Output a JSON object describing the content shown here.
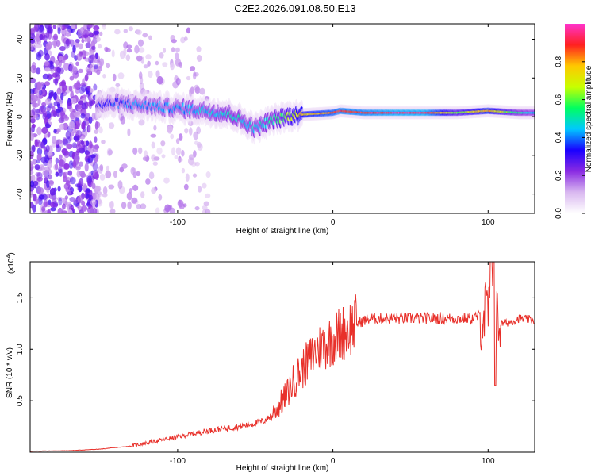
{
  "title": "C2E2.2026.091.08.50.E13",
  "chart_data": [
    {
      "type": "heatmap",
      "xlabel": "Height of straight line (km)",
      "ylabel": "Frequency (Hz)",
      "xlim": [
        -195,
        130
      ],
      "ylim": [
        -50,
        48
      ],
      "xticks": [
        -100,
        0,
        100
      ],
      "xtick_labels": [
        "-100",
        "0",
        "100"
      ],
      "yticks": [
        -40,
        -20,
        0,
        20,
        40
      ],
      "ytick_labels": [
        "-40",
        "-20",
        "0",
        "20",
        "40"
      ],
      "colorbar": {
        "label": "Normalized spectral amplitude",
        "range": [
          0,
          1
        ],
        "ticks": [
          0.0,
          0.2,
          0.4,
          0.6,
          0.8
        ],
        "tick_labels": [
          "0.0",
          "0.2",
          "0.4",
          "0.6",
          "0.8"
        ],
        "colors": [
          "#ffffff",
          "#d9b8f0",
          "#8a2be2",
          "#1a00ff",
          "#00c8ff",
          "#00ff60",
          "#c8ff00",
          "#ffc800",
          "#ff2020",
          "#ff33cc"
        ]
      },
      "ridge": [
        {
          "x": -152,
          "freq": 6,
          "amp": 0.3
        },
        {
          "x": -140,
          "freq": 7,
          "amp": 0.35
        },
        {
          "x": -125,
          "freq": 6,
          "amp": 0.4
        },
        {
          "x": -110,
          "freq": 5,
          "amp": 0.4
        },
        {
          "x": -95,
          "freq": 4,
          "amp": 0.42
        },
        {
          "x": -80,
          "freq": 3,
          "amp": 0.45
        },
        {
          "x": -65,
          "freq": 1,
          "amp": 0.5
        },
        {
          "x": -50,
          "freq": -6,
          "amp": 0.45
        },
        {
          "x": -40,
          "freq": -2,
          "amp": 0.5
        },
        {
          "x": -30,
          "freq": 0,
          "amp": 0.6
        },
        {
          "x": -20,
          "freq": 1,
          "amp": 0.75
        },
        {
          "x": -10,
          "freq": 1.5,
          "amp": 0.8
        },
        {
          "x": 0,
          "freq": 2,
          "amp": 0.85
        },
        {
          "x": 5,
          "freq": 3,
          "amp": 0.9
        },
        {
          "x": 20,
          "freq": 2,
          "amp": 0.9
        },
        {
          "x": 40,
          "freq": 2,
          "amp": 0.95
        },
        {
          "x": 60,
          "freq": 2,
          "amp": 0.95
        },
        {
          "x": 80,
          "freq": 2,
          "amp": 0.6
        },
        {
          "x": 100,
          "freq": 3,
          "amp": 0.8
        },
        {
          "x": 120,
          "freq": 2,
          "amp": 0.5
        },
        {
          "x": 130,
          "freq": 2,
          "amp": 0.45
        }
      ]
    },
    {
      "type": "line",
      "xlabel": "Height of straight line (km)",
      "ylabel": "SNR (10 * v/v)",
      "y_multiplier_label": "(x10",
      "y_multiplier_exponent": "4",
      "y_multiplier_close": ")",
      "xlim": [
        -195,
        130
      ],
      "ylim": [
        0,
        1.85
      ],
      "xticks": [
        -100,
        0,
        100
      ],
      "xtick_labels": [
        "-100",
        "0",
        "100"
      ],
      "yticks": [
        0.5,
        1.0,
        1.5
      ],
      "ytick_labels": [
        "0.5",
        "1.0",
        "1.5"
      ],
      "series": [
        {
          "name": "SNR",
          "color": "#e8302a",
          "x": [
            -195,
            -170,
            -150,
            -130,
            -120,
            -110,
            -100,
            -90,
            -80,
            -70,
            -60,
            -50,
            -45,
            -40,
            -35,
            -30,
            -25,
            -20,
            -15,
            -10,
            -5,
            0,
            5,
            10,
            15,
            20,
            25,
            30,
            40,
            50,
            60,
            70,
            80,
            90,
            95,
            100,
            103,
            106,
            110,
            115,
            120,
            130
          ],
          "y": [
            0.01,
            0.015,
            0.03,
            0.06,
            0.09,
            0.12,
            0.15,
            0.18,
            0.21,
            0.23,
            0.25,
            0.28,
            0.3,
            0.35,
            0.45,
            0.55,
            0.7,
            0.8,
            0.9,
            1.0,
            1.05,
            1.1,
            1.15,
            1.2,
            1.25,
            1.28,
            1.3,
            1.3,
            1.3,
            1.3,
            1.3,
            1.3,
            1.3,
            1.3,
            1.33,
            1.35,
            1.8,
            1.25,
            1.25,
            1.27,
            1.3,
            1.28
          ]
        }
      ]
    }
  ]
}
